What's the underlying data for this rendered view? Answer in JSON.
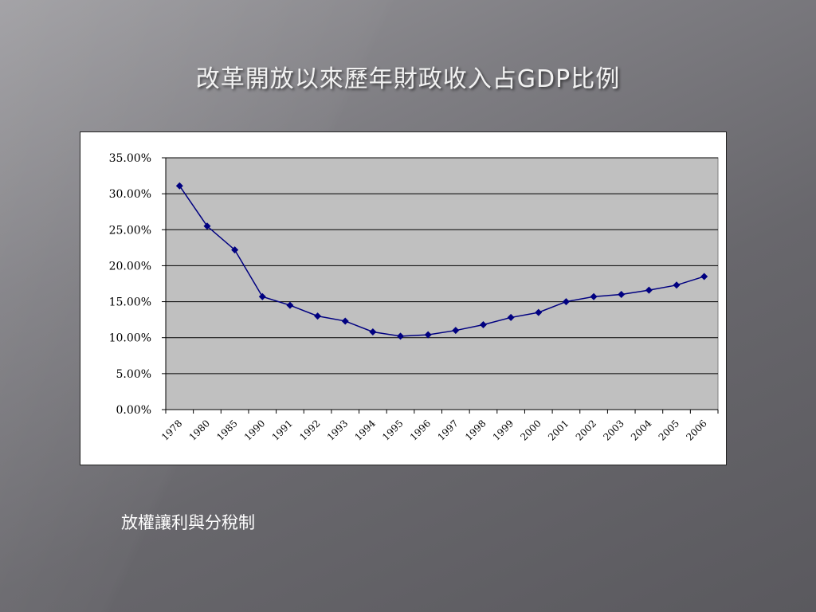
{
  "slide": {
    "title": "改革開放以來歷年財政收入占GDP比例",
    "subtitle": "放權讓利與分稅制"
  },
  "colors": {
    "plot_background": "#c0c0c0",
    "series_line": "#000080",
    "grid": "#000000"
  },
  "chart_data": {
    "type": "line",
    "title": "",
    "xlabel": "",
    "ylabel": "",
    "categories": [
      "1978",
      "1980",
      "1985",
      "1990",
      "1991",
      "1992",
      "1993",
      "1994",
      "1995",
      "1996",
      "1997",
      "1998",
      "1999",
      "2000",
      "2001",
      "2002",
      "2003",
      "2004",
      "2005",
      "2006"
    ],
    "series": [
      {
        "values": [
          0.311,
          0.255,
          0.222,
          0.157,
          0.145,
          0.13,
          0.123,
          0.108,
          0.102,
          0.104,
          0.11,
          0.118,
          0.128,
          0.135,
          0.15,
          0.157,
          0.16,
          0.166,
          0.173,
          0.185
        ]
      }
    ],
    "ylim": [
      0,
      0.35
    ],
    "yticks": [
      0,
      0.05,
      0.1,
      0.15,
      0.2,
      0.25,
      0.3,
      0.35
    ],
    "ytick_labels": [
      "0.00%",
      "5.00%",
      "10.00%",
      "15.00%",
      "20.00%",
      "25.00%",
      "30.00%",
      "35.00%"
    ],
    "grid": true,
    "legend": "none",
    "marker": "diamond"
  }
}
